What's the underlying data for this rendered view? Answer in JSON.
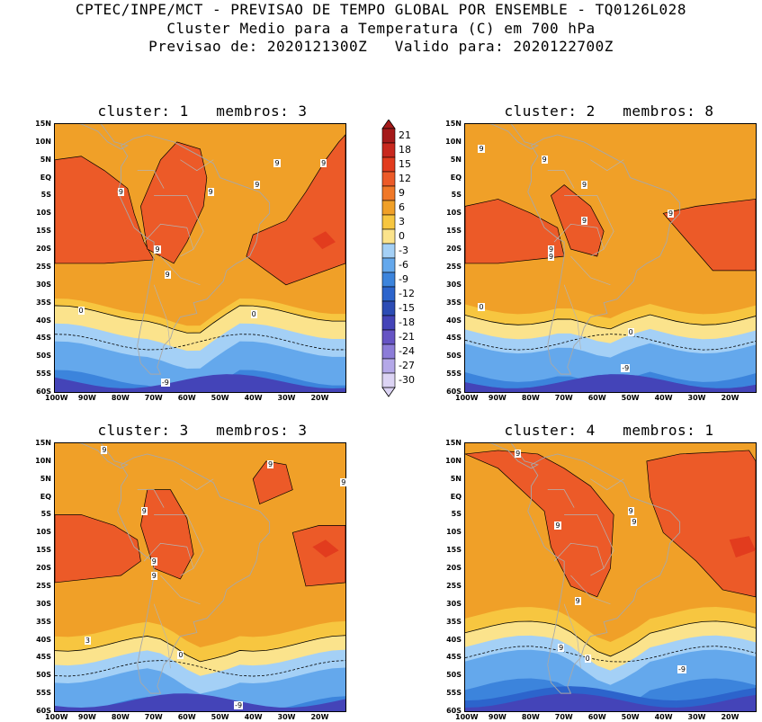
{
  "header": {
    "line1": "CPTEC/INPE/MCT - PREVISAO DE TEMPO GLOBAL POR ENSEMBLE - TQ0126L028",
    "line2": "Cluster Medio para a Temperatura (C) em 700 hPa",
    "line3": "Previsao de: 2020121300Z   Valido para: 2020122700Z"
  },
  "axes": {
    "lat_labels": [
      "15N",
      "10N",
      "5N",
      "EQ",
      "5S",
      "10S",
      "15S",
      "20S",
      "25S",
      "30S",
      "35S",
      "40S",
      "45S",
      "50S",
      "55S",
      "60S"
    ],
    "lon_labels": [
      "100W",
      "90W",
      "80W",
      "70W",
      "60W",
      "50W",
      "40W",
      "30W",
      "20W"
    ]
  },
  "colorbar": {
    "levels": [
      "21",
      "18",
      "15",
      "12",
      "9",
      "6",
      "3",
      "0",
      "-3",
      "-6",
      "-9",
      "-12",
      "-15",
      "-18",
      "-21",
      "-24",
      "-27",
      "-30"
    ],
    "colors": [
      "#a51a1a",
      "#c8281e",
      "#e23c1e",
      "#ec5a28",
      "#f07828",
      "#f0a028",
      "#f7c640",
      "#fbe38c",
      "#a4d0f6",
      "#64a8ec",
      "#3c84dc",
      "#2c64cc",
      "#2c4cb4",
      "#4444b8",
      "#6654c4",
      "#8c7cd8",
      "#b4a8e8",
      "#dcd4f4"
    ],
    "colors_note": "top-to-bottom"
  },
  "panels": [
    {
      "title": "cluster: 1   membros: 3",
      "contour_labels": [
        "9",
        "9",
        "9",
        "9",
        "9",
        "9",
        "9",
        "0",
        "0",
        "-9"
      ]
    },
    {
      "title": "cluster: 2   membros: 8",
      "contour_labels": [
        "9",
        "9",
        "9",
        "9",
        "9",
        "9",
        "9",
        "0",
        "0",
        "-9"
      ]
    },
    {
      "title": "cluster: 3   membros: 3",
      "contour_labels": [
        "9",
        "9",
        "9",
        "9",
        "9",
        "9",
        "3",
        "0",
        "-9"
      ]
    },
    {
      "title": "cluster: 4   membros: 1",
      "contour_labels": [
        "9",
        "9",
        "9",
        "9",
        "9",
        "9",
        "0",
        "-9",
        "0"
      ]
    }
  ]
}
